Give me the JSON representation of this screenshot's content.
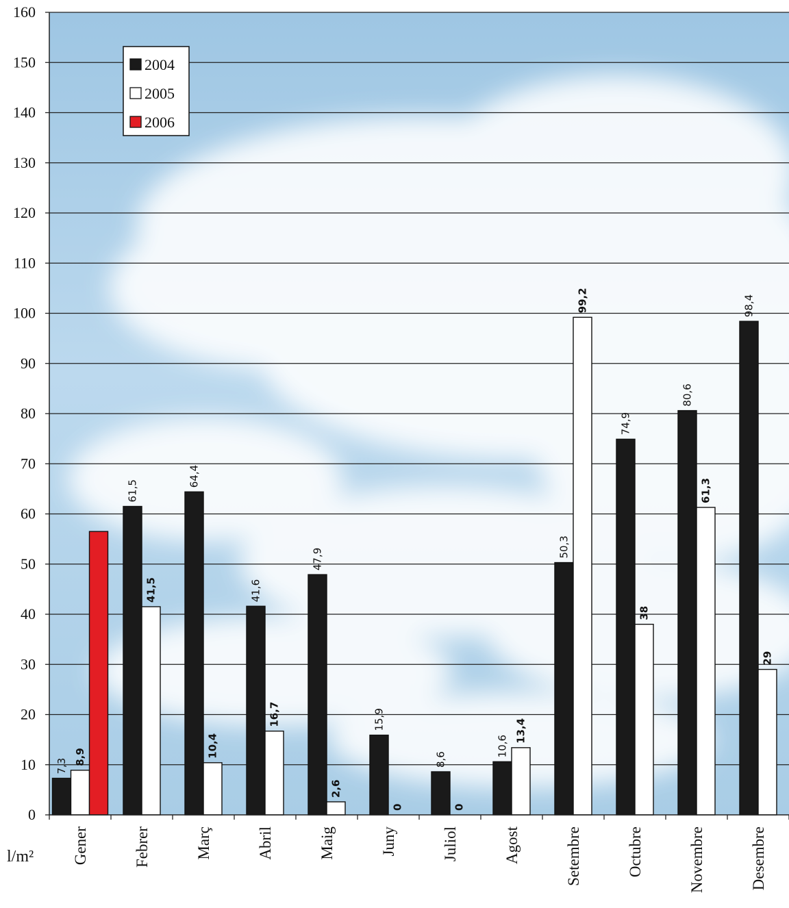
{
  "chart_data": {
    "type": "bar",
    "categories": [
      "Gener",
      "Febrer",
      "Març",
      "Abril",
      "Maig",
      "Juny",
      "Juliol",
      "Agost",
      "Setembre",
      "Octubre",
      "Novembre",
      "Desembre"
    ],
    "series": [
      {
        "name": "2004",
        "color": "#1a1a1a",
        "values": [
          7.3,
          61.5,
          64.4,
          41.6,
          47.9,
          15.9,
          8.6,
          10.6,
          50.3,
          74.9,
          80.6,
          98.4
        ],
        "labels": [
          "7,3",
          "61,5",
          "64,4",
          "41,6",
          "47,9",
          "15,9",
          "8,6",
          "10,6",
          "50,3",
          "74,9",
          "80,6",
          "98,4"
        ],
        "label_style": "normal"
      },
      {
        "name": "2005",
        "color": "#ffffff",
        "values": [
          8.9,
          41.5,
          10.4,
          16.7,
          2.6,
          0,
          0,
          13.4,
          99.2,
          38,
          61.3,
          29
        ],
        "labels": [
          "8,9",
          "41,5",
          "10,4",
          "16,7",
          "2,6",
          "0",
          "0",
          "13,4",
          "99,2",
          "38",
          "61,3",
          "29"
        ],
        "label_style": "bold"
      },
      {
        "name": "2006",
        "color": "#e31e24",
        "values": [
          56.5,
          null,
          null,
          null,
          null,
          null,
          null,
          null,
          null,
          null,
          null,
          null
        ],
        "labels": [
          "",
          "",
          "",
          "",
          "",
          "",
          "",
          "",
          "",
          "",
          "",
          ""
        ],
        "label_style": "none"
      }
    ],
    "ylim": [
      0,
      160
    ],
    "yticks": [
      0,
      10,
      20,
      30,
      40,
      50,
      60,
      70,
      80,
      90,
      100,
      110,
      120,
      130,
      140,
      150,
      160
    ],
    "ylabel": "l/m²",
    "grid": true,
    "legend_position": "top-left"
  }
}
